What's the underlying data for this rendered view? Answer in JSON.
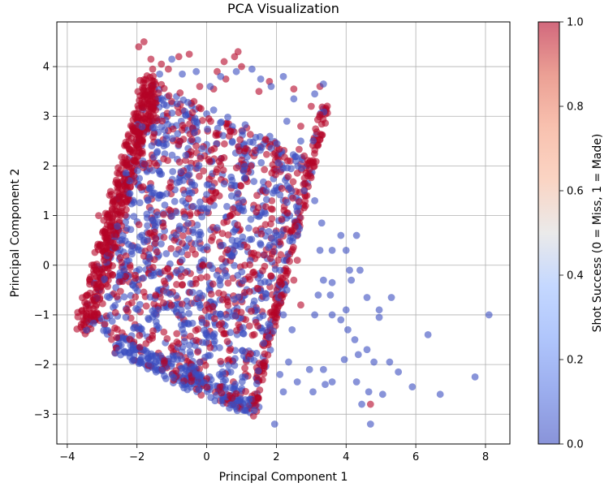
{
  "chart_data": {
    "type": "scatter",
    "title": "PCA Visualization",
    "xlabel": "Principal Component 1",
    "ylabel": "Principal Component 2",
    "xlim": [
      -4.3,
      8.7
    ],
    "ylim": [
      -3.6,
      4.9
    ],
    "xticks": [
      "−4",
      "−2",
      "0",
      "2",
      "4",
      "6",
      "8"
    ],
    "yticks": [
      "−3",
      "−2",
      "−1",
      "0",
      "1",
      "2",
      "3",
      "4"
    ],
    "grid": true,
    "colormap": "coolwarm",
    "point_alpha": 0.6,
    "colors": {
      "miss": "#3b4cc0",
      "made": "#b40426"
    },
    "colorbar": {
      "label": "Shot Success (0 = Miss, 1 = Made)",
      "range": [
        0.0,
        1.0
      ],
      "ticks": [
        "0.0",
        "0.2",
        "0.4",
        "0.6",
        "0.8",
        "1.0"
      ]
    },
    "points": [
      [
        -3.1,
        1.0,
        1
      ],
      [
        -1.95,
        4.4,
        1
      ],
      [
        -1.8,
        4.5,
        1
      ],
      [
        -1.6,
        4.15,
        1
      ],
      [
        -1.3,
        4.05,
        1
      ],
      [
        -1.1,
        3.95,
        1
      ],
      [
        -0.8,
        4.2,
        1
      ],
      [
        -0.5,
        4.25,
        1
      ],
      [
        0.5,
        4.1,
        1
      ],
      [
        0.8,
        4.2,
        1
      ],
      [
        0.9,
        4.3,
        1
      ],
      [
        1.0,
        4.0,
        1
      ],
      [
        0.3,
        3.9,
        1
      ],
      [
        -0.2,
        3.6,
        1
      ],
      [
        0.2,
        3.55,
        1
      ],
      [
        0.55,
        3.75,
        1
      ],
      [
        2.5,
        3.55,
        1
      ],
      [
        3.0,
        3.2,
        1
      ],
      [
        3.25,
        3.6,
        1
      ],
      [
        2.7,
        2.8,
        1
      ],
      [
        2.8,
        2.2,
        1
      ],
      [
        2.9,
        1.8,
        1
      ],
      [
        2.6,
        0.1,
        1
      ],
      [
        2.5,
        -0.3,
        1
      ],
      [
        2.7,
        -0.8,
        1
      ],
      [
        4.7,
        -2.8,
        1
      ],
      [
        -1.7,
        3.5,
        1
      ],
      [
        -1.55,
        3.95,
        1
      ],
      [
        1.5,
        3.5,
        1
      ],
      [
        1.8,
        3.7,
        1
      ],
      [
        -1.0,
        4.15,
        0
      ],
      [
        -1.35,
        3.85,
        0
      ],
      [
        -0.7,
        3.85,
        0
      ],
      [
        -0.3,
        3.9,
        0
      ],
      [
        0.1,
        3.6,
        0
      ],
      [
        0.4,
        3.8,
        0
      ],
      [
        0.85,
        3.9,
        0
      ],
      [
        1.3,
        3.95,
        0
      ],
      [
        1.55,
        3.75,
        0
      ],
      [
        2.2,
        3.8,
        0
      ],
      [
        1.85,
        3.6,
        0
      ],
      [
        2.5,
        3.35,
        0
      ],
      [
        3.1,
        3.45,
        0
      ],
      [
        3.35,
        3.65,
        0
      ],
      [
        2.3,
        2.9,
        0
      ],
      [
        2.7,
        2.5,
        0
      ],
      [
        2.8,
        1.5,
        0
      ],
      [
        3.1,
        1.3,
        0
      ],
      [
        3.3,
        0.85,
        0
      ],
      [
        3.25,
        0.3,
        0
      ],
      [
        3.6,
        0.3,
        0
      ],
      [
        4.0,
        0.3,
        0
      ],
      [
        3.85,
        0.6,
        0
      ],
      [
        4.3,
        0.6,
        0
      ],
      [
        4.1,
        -0.1,
        0
      ],
      [
        3.35,
        -0.3,
        0
      ],
      [
        3.6,
        -0.35,
        0
      ],
      [
        3.2,
        -0.6,
        0
      ],
      [
        3.55,
        -0.6,
        0
      ],
      [
        3.1,
        -1.0,
        0
      ],
      [
        3.6,
        -1.0,
        0
      ],
      [
        3.85,
        -1.1,
        0
      ],
      [
        4.0,
        -0.9,
        0
      ],
      [
        4.4,
        -0.1,
        0
      ],
      [
        4.15,
        -0.3,
        0
      ],
      [
        4.6,
        -0.65,
        0
      ],
      [
        4.95,
        -0.9,
        0
      ],
      [
        5.3,
        -0.65,
        0
      ],
      [
        4.95,
        -1.05,
        0
      ],
      [
        4.25,
        -1.5,
        0
      ],
      [
        4.6,
        -1.7,
        0
      ],
      [
        4.35,
        -1.8,
        0
      ],
      [
        4.8,
        -1.95,
        0
      ],
      [
        5.25,
        -1.95,
        0
      ],
      [
        5.5,
        -2.15,
        0
      ],
      [
        5.05,
        -2.6,
        0
      ],
      [
        4.65,
        -2.55,
        0
      ],
      [
        4.3,
        -2.35,
        0
      ],
      [
        3.6,
        -2.35,
        0
      ],
      [
        3.35,
        -2.1,
        0
      ],
      [
        2.95,
        -2.1,
        0
      ],
      [
        2.6,
        -2.35,
        0
      ],
      [
        2.35,
        -1.95,
        0
      ],
      [
        2.1,
        -2.2,
        0
      ],
      [
        2.2,
        -2.55,
        0
      ],
      [
        3.05,
        -2.55,
        0
      ],
      [
        3.4,
        -2.4,
        0
      ],
      [
        4.7,
        -3.2,
        0
      ],
      [
        4.45,
        -2.8,
        0
      ],
      [
        1.95,
        -3.2,
        0
      ],
      [
        5.9,
        -2.45,
        0
      ],
      [
        6.35,
        -1.4,
        0
      ],
      [
        6.7,
        -2.6,
        0
      ],
      [
        7.7,
        -2.25,
        0
      ],
      [
        8.1,
        -1.0,
        0
      ],
      [
        2.3,
        -0.5,
        0
      ],
      [
        2.2,
        -1.0,
        0
      ],
      [
        2.45,
        -1.3,
        0
      ],
      [
        3.95,
        -1.9,
        0
      ],
      [
        4.05,
        -1.3,
        0
      ]
    ]
  }
}
